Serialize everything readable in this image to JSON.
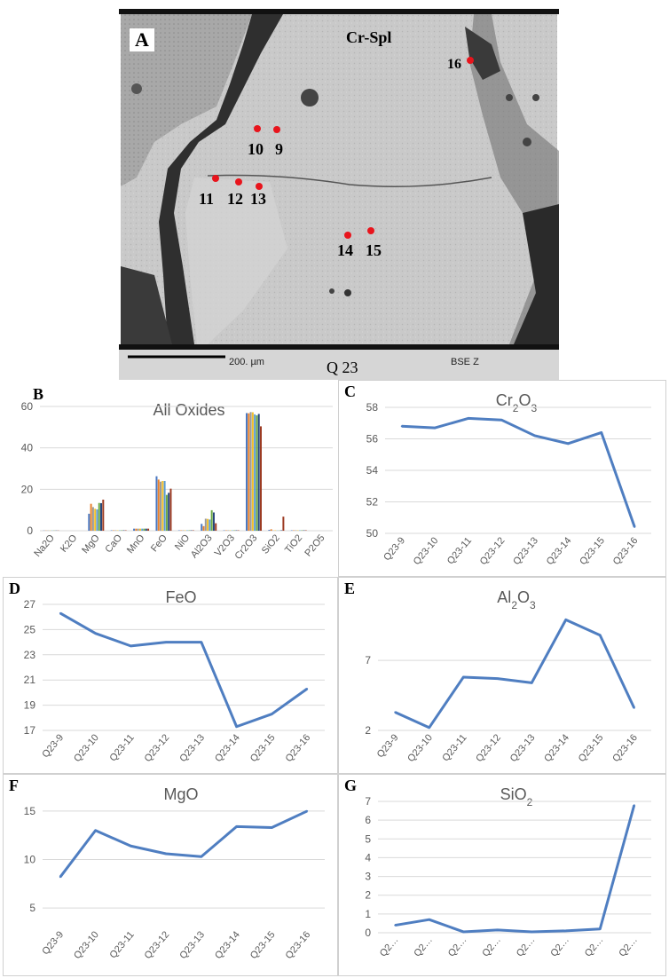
{
  "bse_image": {
    "panel_label": "A",
    "phase_label": "Cr-Spl",
    "scale_text": "200. µm",
    "sample_text": "Q 23",
    "detector_text": "BSE Z",
    "point_labels": [
      "10",
      "9",
      "11",
      "12",
      "13",
      "14",
      "15",
      "16"
    ],
    "point_color": "#e8141c"
  },
  "chart_data": [
    {
      "id": "B",
      "panel_label": "B",
      "type": "bar",
      "title": "All Oxides",
      "categories": [
        "Na2O",
        "K2O",
        "MgO",
        "CaO",
        "MnO",
        "FeO",
        "NiO",
        "Al2O3",
        "V2O3",
        "Cr2O3",
        "SiO2",
        "TiO2",
        "P2O5"
      ],
      "series": [
        {
          "values": [
            0.1,
            0.0,
            8.2,
            0.2,
            1.0,
            26.3,
            0.2,
            3.3,
            0.2,
            56.8,
            0.4,
            0.2,
            0.0
          ]
        },
        {
          "values": [
            0.1,
            0.0,
            13.0,
            0.2,
            1.0,
            24.7,
            0.2,
            2.2,
            0.2,
            56.7,
            0.7,
            0.2,
            0.0
          ]
        },
        {
          "values": [
            0.1,
            0.0,
            11.4,
            0.2,
            1.0,
            23.7,
            0.2,
            5.8,
            0.2,
            57.3,
            0.1,
            0.2,
            0.0
          ]
        },
        {
          "values": [
            0.1,
            0.0,
            10.6,
            0.2,
            1.0,
            24.0,
            0.2,
            5.7,
            0.2,
            57.2,
            0.2,
            0.2,
            0.0
          ]
        },
        {
          "values": [
            0.1,
            0.0,
            10.3,
            0.2,
            1.0,
            24.0,
            0.2,
            5.4,
            0.2,
            56.2,
            0.1,
            0.2,
            0.0
          ]
        },
        {
          "values": [
            0.1,
            0.0,
            13.4,
            0.2,
            1.0,
            17.3,
            0.2,
            9.9,
            0.2,
            55.7,
            0.1,
            0.2,
            0.0
          ]
        },
        {
          "values": [
            0.1,
            0.0,
            13.3,
            0.2,
            1.0,
            18.3,
            0.2,
            8.8,
            0.2,
            56.4,
            0.2,
            0.2,
            0.0
          ]
        },
        {
          "values": [
            0.1,
            0.0,
            15.0,
            0.2,
            1.0,
            20.3,
            0.2,
            3.6,
            0.2,
            50.4,
            6.8,
            0.2,
            0.0
          ]
        }
      ],
      "colors": [
        "#4a78c2",
        "#e9812c",
        "#9a9a9a",
        "#f2bf2a",
        "#5a9bd4",
        "#6ba943",
        "#26447a",
        "#9c3a22"
      ],
      "ylim": [
        0,
        60
      ],
      "yticks": [
        0,
        20,
        40,
        60
      ]
    },
    {
      "id": "C",
      "panel_label": "C",
      "type": "line",
      "title": "Cr",
      "title_sub": "2",
      "title_mid": "O",
      "title_sub2": "3",
      "categories": [
        "Q23-9",
        "Q23-10",
        "Q23-11",
        "Q23-12",
        "Q23-13",
        "Q23-14",
        "Q23-15",
        "Q23-16"
      ],
      "values": [
        56.8,
        56.7,
        57.3,
        57.2,
        56.2,
        55.7,
        56.4,
        50.4
      ],
      "ylim": [
        50,
        58
      ],
      "yticks": [
        50,
        52,
        54,
        56,
        58
      ]
    },
    {
      "id": "D",
      "panel_label": "D",
      "type": "line",
      "title": "FeO",
      "categories": [
        "Q23-9",
        "Q23-10",
        "Q23-11",
        "Q23-12",
        "Q23-13",
        "Q23-14",
        "Q23-15",
        "Q23-16"
      ],
      "values": [
        26.3,
        24.7,
        23.7,
        24.0,
        24.0,
        17.3,
        18.3,
        20.3
      ],
      "ylim": [
        17,
        27
      ],
      "yticks": [
        17,
        19,
        21,
        23,
        25,
        27
      ]
    },
    {
      "id": "E",
      "panel_label": "E",
      "type": "line",
      "title": "Al",
      "title_sub": "2",
      "title_mid": "O",
      "title_sub2": "3",
      "categories": [
        "Q23-9",
        "Q23-10",
        "Q23-11",
        "Q23-12",
        "Q23-13",
        "Q23-14",
        "Q23-15",
        "Q23-16"
      ],
      "values": [
        3.3,
        2.2,
        5.8,
        5.7,
        5.4,
        9.9,
        8.8,
        3.6
      ],
      "ylim": [
        2,
        11
      ],
      "yticks": [
        2,
        7
      ]
    },
    {
      "id": "F",
      "panel_label": "F",
      "type": "line",
      "title": "MgO",
      "categories": [
        "Q23-9",
        "Q23-10",
        "Q23-11",
        "Q23-12",
        "Q23-13",
        "Q23-14",
        "Q23-15",
        "Q23-16"
      ],
      "values": [
        8.2,
        13.0,
        11.4,
        10.6,
        10.3,
        13.4,
        13.3,
        15.0
      ],
      "ylim": [
        3,
        16
      ],
      "yticks": [
        5,
        10,
        15
      ]
    },
    {
      "id": "G",
      "panel_label": "G",
      "type": "line",
      "title": "SiO",
      "title_sub": "2",
      "categories": [
        "Q2…",
        "Q2…",
        "Q2…",
        "Q2…",
        "Q2…",
        "Q2…",
        "Q2…",
        "Q2…"
      ],
      "values": [
        0.4,
        0.7,
        0.05,
        0.15,
        0.05,
        0.1,
        0.2,
        6.8
      ],
      "ylim": [
        0,
        7
      ],
      "yticks": [
        0,
        1,
        2,
        3,
        4,
        5,
        6,
        7
      ]
    }
  ],
  "style": {
    "line_color": "#4f7ec1",
    "grid_color": "#d9d9d9",
    "text_color": "#595959",
    "title_color": "#595959"
  }
}
